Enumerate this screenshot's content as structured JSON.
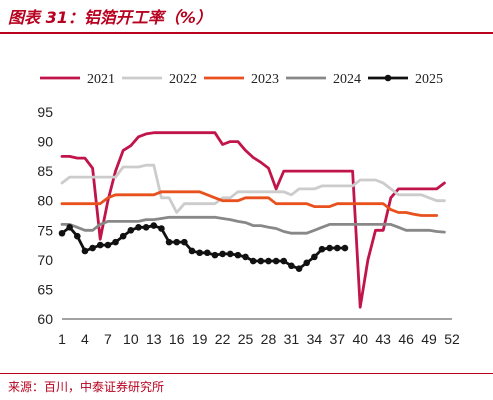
{
  "header": {
    "title": "图表 31：铝箔开工率（%）"
  },
  "footer": {
    "source": "来源：百川，中泰证券研究所"
  },
  "chart_data": {
    "type": "line",
    "title": "铝箔开工率（%）",
    "xlabel": "",
    "ylabel": "",
    "x_ticks": [
      1,
      4,
      7,
      10,
      13,
      16,
      19,
      22,
      25,
      28,
      31,
      34,
      37,
      40,
      43,
      46,
      49,
      52
    ],
    "xlim": [
      1,
      52
    ],
    "y_ticks": [
      60,
      65,
      70,
      75,
      80,
      85,
      90,
      95
    ],
    "ylim": [
      60,
      95
    ],
    "grid": false,
    "legend": "top",
    "series": [
      {
        "name": "2021",
        "color": "#c0144a",
        "marker": false,
        "x": [
          1,
          2,
          3,
          4,
          5,
          6,
          7,
          8,
          9,
          10,
          11,
          12,
          13,
          14,
          15,
          16,
          17,
          18,
          19,
          20,
          21,
          22,
          23,
          24,
          25,
          26,
          27,
          28,
          29,
          30,
          31,
          32,
          33,
          34,
          35,
          36,
          37,
          38,
          39,
          40,
          41,
          42,
          43,
          44,
          45,
          46,
          47,
          48,
          49,
          50,
          51
        ],
        "values": [
          87.5,
          87.5,
          87.2,
          87.2,
          85.5,
          73.5,
          80,
          85,
          88.5,
          89.3,
          90.8,
          91.3,
          91.5,
          91.5,
          91.5,
          91.5,
          91.5,
          91.5,
          91.5,
          91.5,
          91.5,
          89.5,
          90,
          90,
          88.5,
          87.3,
          86.5,
          85.5,
          82,
          85,
          85,
          85,
          85,
          85,
          85,
          85,
          85,
          85,
          85,
          62,
          70,
          75,
          75,
          80.5,
          82,
          82,
          82,
          82,
          82,
          82,
          83
        ]
      },
      {
        "name": "2022",
        "color": "#cccccc",
        "marker": false,
        "x": [
          1,
          2,
          3,
          4,
          5,
          6,
          7,
          8,
          9,
          10,
          11,
          12,
          13,
          14,
          15,
          16,
          17,
          18,
          19,
          20,
          21,
          22,
          23,
          24,
          25,
          26,
          27,
          28,
          29,
          30,
          31,
          32,
          33,
          34,
          35,
          36,
          37,
          38,
          39,
          40,
          41,
          42,
          43,
          44,
          45,
          46,
          47,
          48,
          49,
          50,
          51
        ],
        "values": [
          83,
          84,
          84,
          84,
          84,
          84,
          84,
          84,
          85.7,
          85.7,
          85.7,
          86,
          86,
          80.5,
          80.5,
          78,
          79.5,
          79.5,
          79.5,
          79.5,
          79.5,
          80.5,
          80.5,
          81.5,
          81.5,
          81.5,
          81.5,
          81.5,
          81.5,
          81.5,
          81,
          82,
          82,
          82,
          82.5,
          82.5,
          82.5,
          82.5,
          82.5,
          83.5,
          83.5,
          83.5,
          83,
          82,
          81,
          81,
          81,
          81,
          80.5,
          80,
          80
        ]
      },
      {
        "name": "2023",
        "color": "#e8501e",
        "marker": false,
        "x": [
          1,
          2,
          3,
          4,
          5,
          6,
          7,
          8,
          9,
          10,
          11,
          12,
          13,
          14,
          15,
          16,
          17,
          18,
          19,
          20,
          21,
          22,
          23,
          24,
          25,
          26,
          27,
          28,
          29,
          30,
          31,
          32,
          33,
          34,
          35,
          36,
          37,
          38,
          39,
          40,
          41,
          42,
          43,
          44,
          45,
          46,
          47,
          48,
          49,
          50
        ],
        "values": [
          79.5,
          79.5,
          79.5,
          79.5,
          79.5,
          79.5,
          80.5,
          81,
          81,
          81,
          81,
          81,
          81,
          81.5,
          81.5,
          81.5,
          81.5,
          81.5,
          81.5,
          81,
          80.5,
          80,
          80,
          80,
          80.5,
          80.5,
          80.5,
          80.5,
          79.5,
          79.5,
          79.5,
          79.5,
          79.5,
          79,
          79,
          79,
          79.5,
          79.5,
          79.5,
          79.5,
          79.5,
          79.5,
          79.5,
          78.5,
          78,
          78,
          77.7,
          77.5,
          77.5,
          77.5
        ]
      },
      {
        "name": "2024",
        "color": "#888888",
        "marker": false,
        "x": [
          1,
          2,
          3,
          4,
          5,
          6,
          7,
          8,
          9,
          10,
          11,
          12,
          13,
          14,
          15,
          16,
          17,
          18,
          19,
          20,
          21,
          22,
          23,
          24,
          25,
          26,
          27,
          28,
          29,
          30,
          31,
          32,
          33,
          34,
          35,
          36,
          37,
          38,
          39,
          40,
          41,
          42,
          43,
          44,
          45,
          46,
          47,
          48,
          49,
          50,
          51
        ],
        "values": [
          76,
          76,
          75.5,
          75,
          75,
          76,
          76.5,
          76.5,
          76.5,
          76.5,
          76.5,
          76.8,
          76.8,
          77,
          77.2,
          77.2,
          77.2,
          77.2,
          77.2,
          77.2,
          77.2,
          77,
          76.8,
          76.5,
          76.3,
          75.8,
          75.8,
          75.5,
          75.3,
          74.8,
          74.5,
          74.5,
          74.5,
          75,
          75.5,
          76,
          76,
          76,
          76,
          76,
          76,
          76,
          76,
          76,
          75.5,
          75,
          75,
          75,
          75,
          74.8,
          74.7
        ]
      },
      {
        "name": "2025",
        "color": "#111111",
        "marker": true,
        "x": [
          1,
          2,
          3,
          4,
          5,
          6,
          7,
          8,
          9,
          10,
          11,
          12,
          13,
          14,
          15,
          16,
          17,
          18,
          19,
          20,
          21,
          22,
          23,
          24,
          25,
          26,
          27,
          28,
          29,
          30,
          31,
          32,
          33,
          34,
          35,
          36,
          37,
          38
        ],
        "values": [
          74.5,
          75.5,
          74,
          71.5,
          72,
          72.5,
          72.5,
          73,
          74,
          75,
          75.5,
          75.5,
          75.8,
          75.3,
          73,
          73,
          73,
          71.5,
          71.2,
          71.2,
          70.8,
          71,
          71,
          70.8,
          70.5,
          69.8,
          69.8,
          69.8,
          69.8,
          69.8,
          69,
          68.5,
          69.5,
          70.5,
          71.8,
          72,
          72,
          72
        ]
      }
    ]
  }
}
